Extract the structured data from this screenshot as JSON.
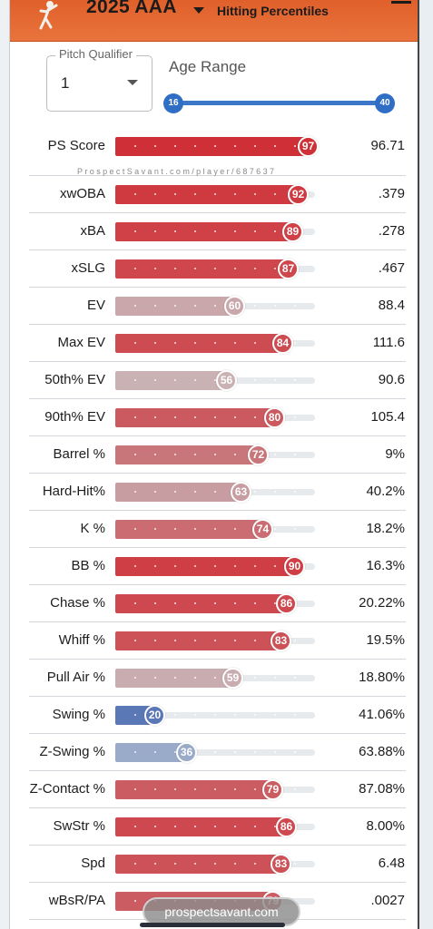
{
  "header": {
    "title": "2025 AAA",
    "subtitle": "Hitting Percentiles",
    "logo_icon": "baseball-player-logo",
    "menu_icon": "menu-icon"
  },
  "filters": {
    "pitch_qualifier": {
      "label": "Pitch Qualifier",
      "value": "1"
    },
    "age_range": {
      "label": "Age Range",
      "min": "16",
      "max": "40"
    }
  },
  "watermark": "ProspectSavant.com/player/687637",
  "metrics": [
    {
      "label": "PS Score",
      "percentile": 97,
      "value": "96.71",
      "color": "#cf3037"
    },
    {
      "label": "xwOBA",
      "percentile": 92,
      "value": ".379",
      "color": "#cf3a40"
    },
    {
      "label": "xBA",
      "percentile": 89,
      "value": ".278",
      "color": "#cf4147"
    },
    {
      "label": "xSLG",
      "percentile": 87,
      "value": ".467",
      "color": "#cf474c"
    },
    {
      "label": "EV",
      "percentile": 60,
      "value": "88.4",
      "color": "#c9a7ab"
    },
    {
      "label": "Max EV",
      "percentile": 84,
      "value": "111.6",
      "color": "#cd4c52"
    },
    {
      "label": "50th% EV",
      "percentile": 56,
      "value": "90.6",
      "color": "#c9b1b4"
    },
    {
      "label": "90th% EV",
      "percentile": 80,
      "value": "105.4",
      "color": "#cb5a60"
    },
    {
      "label": "Barrel %",
      "percentile": 72,
      "value": "9%",
      "color": "#c9767b"
    },
    {
      "label": "Hard-Hit%",
      "percentile": 63,
      "value": "40.2%",
      "color": "#c89da1"
    },
    {
      "label": "K %",
      "percentile": 74,
      "value": "18.2%",
      "color": "#ca6c71"
    },
    {
      "label": "BB %",
      "percentile": 90,
      "value": "16.3%",
      "color": "#cf3e44"
    },
    {
      "label": "Chase %",
      "percentile": 86,
      "value": "20.22%",
      "color": "#ce494f"
    },
    {
      "label": "Whiff %",
      "percentile": 83,
      "value": "19.5%",
      "color": "#cd5257"
    },
    {
      "label": "Pull Air %",
      "percentile": 59,
      "value": "18.80%",
      "color": "#c9acb0"
    },
    {
      "label": "Swing %",
      "percentile": 20,
      "value": "41.06%",
      "color": "#5a77b6"
    },
    {
      "label": "Z-Swing %",
      "percentile": 36,
      "value": "63.88%",
      "color": "#99abc8"
    },
    {
      "label": "Z-Contact %",
      "percentile": 79,
      "value": "87.08%",
      "color": "#cb5c62"
    },
    {
      "label": "SwStr %",
      "percentile": 86,
      "value": "8.00%",
      "color": "#ce494f"
    },
    {
      "label": "Spd",
      "percentile": 83,
      "value": "6.48",
      "color": "#cd5257"
    },
    {
      "label": "wBsR/PA",
      "percentile": 79,
      "value": ".0027",
      "color": "#cb5c62"
    }
  ],
  "footer": {
    "site": "prospectsavant.com"
  }
}
